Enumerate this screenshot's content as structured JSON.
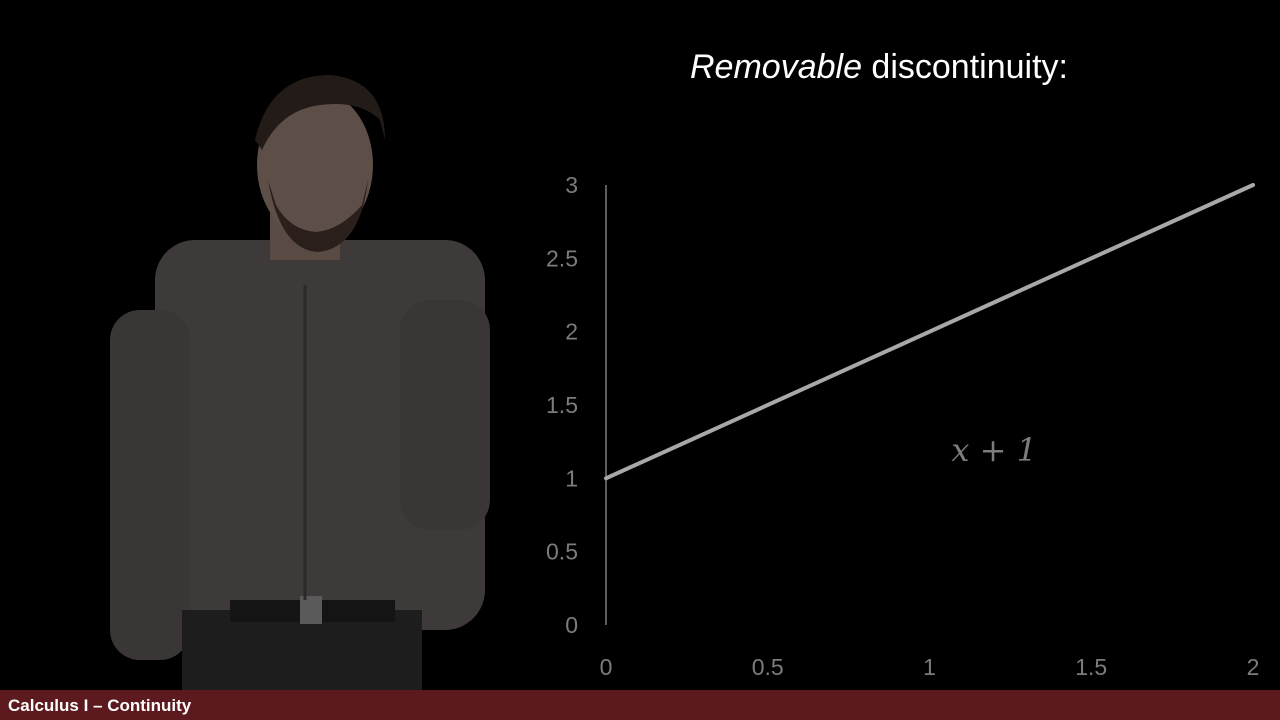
{
  "slide": {
    "title_italic": "Removable",
    "title_rest": " discontinuity:"
  },
  "footer": {
    "label": "Calculus I – Continuity",
    "color": "#5c1a1f"
  },
  "chart_data": {
    "type": "line",
    "x_ticks": [
      "0",
      "0.5",
      "1",
      "1.5",
      "2"
    ],
    "y_ticks": [
      "0",
      "0.5",
      "1",
      "1.5",
      "2",
      "2.5",
      "3"
    ],
    "xlim": [
      0,
      2
    ],
    "ylim": [
      0,
      3
    ],
    "grid": false,
    "series": [
      {
        "x": [
          0,
          2
        ],
        "y": [
          1,
          3
        ],
        "color": "#a8a8a8"
      }
    ],
    "annotation": "x + 1"
  }
}
